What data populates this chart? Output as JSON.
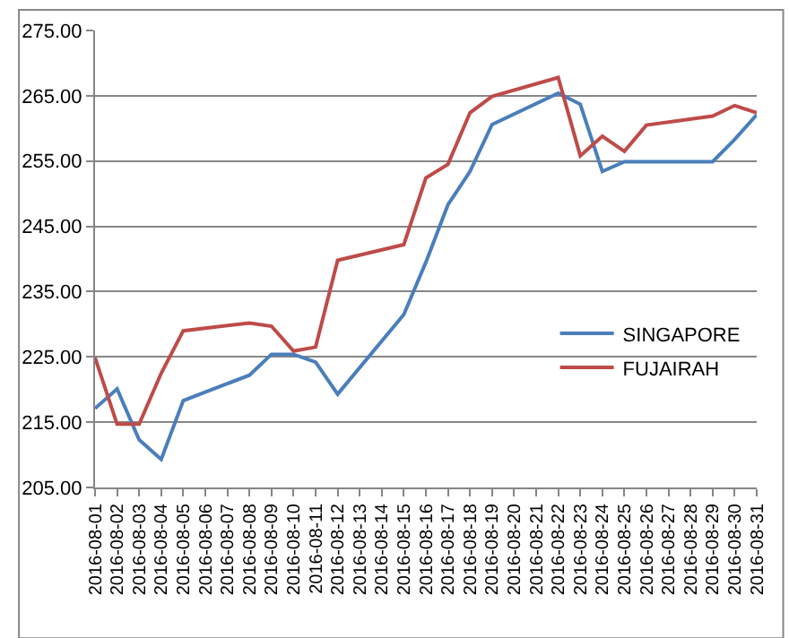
{
  "chart_data": {
    "type": "line",
    "x": [
      "2016-08-01",
      "2016-08-02",
      "2016-08-03",
      "2016-08-04",
      "2016-08-05",
      "2016-08-08",
      "2016-08-09",
      "2016-08-10",
      "2016-08-11",
      "2016-08-12",
      "2016-08-15",
      "2016-08-16",
      "2016-08-17",
      "2016-08-18",
      "2016-08-19",
      "2016-08-22",
      "2016-08-23",
      "2016-08-24",
      "2016-08-25",
      "2016-08-26",
      "2016-08-29",
      "2016-08-30",
      "2016-08-31"
    ],
    "series": [
      {
        "name": "SINGAPORE",
        "color": "#4a7ebb",
        "values": [
          217.1,
          220.1,
          212.3,
          209.3,
          218.3,
          222.2,
          225.4,
          225.4,
          224.2,
          219.3,
          231.5,
          239.5,
          248.3,
          253.4,
          260.6,
          265.4,
          263.7,
          253.4,
          254.9,
          254.9,
          254.9,
          258.3,
          262.1
        ]
      },
      {
        "name": "FUJAIRAH",
        "color": "#be4b48",
        "values": [
          224.9,
          214.7,
          214.7,
          222.5,
          229.0,
          230.2,
          229.7,
          225.9,
          226.5,
          239.8,
          242.2,
          252.4,
          254.5,
          262.4,
          264.9,
          267.8,
          255.8,
          258.8,
          256.5,
          260.5,
          261.9,
          263.5,
          262.4
        ]
      }
    ],
    "xlim": [
      "2016-08-01",
      "2016-08-31"
    ],
    "xticks": [
      "2016-08-01",
      "2016-08-02",
      "2016-08-03",
      "2016-08-04",
      "2016-08-05",
      "2016-08-06",
      "2016-08-07",
      "2016-08-08",
      "2016-08-09",
      "2016-08-10",
      "2016-08-11",
      "2016-08-12",
      "2016-08-13",
      "2016-08-14",
      "2016-08-15",
      "2016-08-16",
      "2016-08-17",
      "2016-08-18",
      "2016-08-19",
      "2016-08-20",
      "2016-08-21",
      "2016-08-22",
      "2016-08-23",
      "2016-08-24",
      "2016-08-25",
      "2016-08-26",
      "2016-08-27",
      "2016-08-28",
      "2016-08-29",
      "2016-08-30",
      "2016-08-31"
    ],
    "ylim": [
      205,
      275
    ],
    "yticks": [
      {
        "value": 205,
        "label": "205.00"
      },
      {
        "value": 215,
        "label": "215.00"
      },
      {
        "value": 225,
        "label": "225.00"
      },
      {
        "value": 235,
        "label": "235.00"
      },
      {
        "value": 245,
        "label": "245.00"
      },
      {
        "value": 255,
        "label": "255.00"
      },
      {
        "value": 265,
        "label": "265.00"
      },
      {
        "value": 275,
        "label": "275.00"
      }
    ],
    "grid": "y",
    "legend": "right",
    "marker": "none",
    "line_style": "solid"
  }
}
